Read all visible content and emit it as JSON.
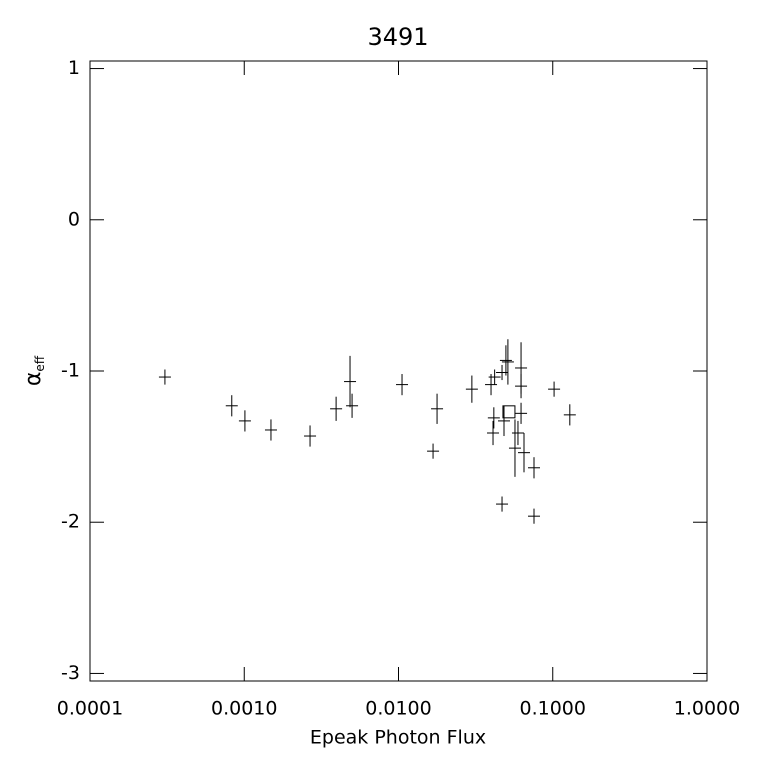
{
  "chart_data": {
    "type": "scatter",
    "title": "3491",
    "xlabel": "Epeak Photon Flux",
    "ylabel": "α",
    "ylabel_sub": "eff",
    "xscale": "log",
    "xlim": [
      0.0001,
      1.0
    ],
    "ylim": [
      -3.05,
      1.05
    ],
    "xticks": [
      {
        "value": 0.0001,
        "label": "0.0001"
      },
      {
        "value": 0.001,
        "label": "0.0010"
      },
      {
        "value": 0.01,
        "label": "0.0100"
      },
      {
        "value": 0.1,
        "label": "0.1000"
      },
      {
        "value": 1.0,
        "label": "1.0000"
      }
    ],
    "yticks": [
      1,
      0,
      -1,
      -2,
      -3
    ],
    "color": "#000000",
    "x": [
      0.000306,
      0.00083,
      0.00101,
      0.00149,
      0.00267,
      0.00394,
      0.00485,
      0.005,
      0.01054,
      0.01675,
      0.01778,
      0.0299,
      0.0398,
      0.041,
      0.0415,
      0.042,
      0.0469,
      0.0469,
      0.0483,
      0.0497,
      0.0512,
      0.0569,
      0.0595,
      0.0623,
      0.0623,
      0.0623,
      0.0651,
      0.0756,
      0.0756,
      0.102,
      0.129
    ],
    "values": [
      -1.04,
      -1.23,
      -1.33,
      -1.39,
      -1.43,
      -1.25,
      -1.07,
      -1.23,
      -1.09,
      -1.53,
      -1.25,
      -1.12,
      -1.09,
      -1.41,
      -1.31,
      -1.04,
      -1.01,
      -1.88,
      -1.33,
      -0.93,
      -0.94,
      -1.51,
      -1.41,
      -1.1,
      -0.98,
      -1.28,
      -1.54,
      -1.64,
      -1.96,
      -1.12,
      -1.29
    ],
    "errors": [
      0.05,
      0.07,
      0.07,
      0.07,
      0.07,
      0.08,
      0.17,
      0.08,
      0.07,
      0.05,
      0.1,
      0.09,
      0.07,
      0.08,
      0.07,
      0.05,
      0.05,
      0.05,
      0.1,
      0.1,
      0.15,
      0.19,
      0.08,
      0.08,
      0.17,
      0.07,
      0.13,
      0.07,
      0.05,
      0.05,
      0.07
    ],
    "highlight": {
      "x": 0.052,
      "y": -1.27
    }
  }
}
